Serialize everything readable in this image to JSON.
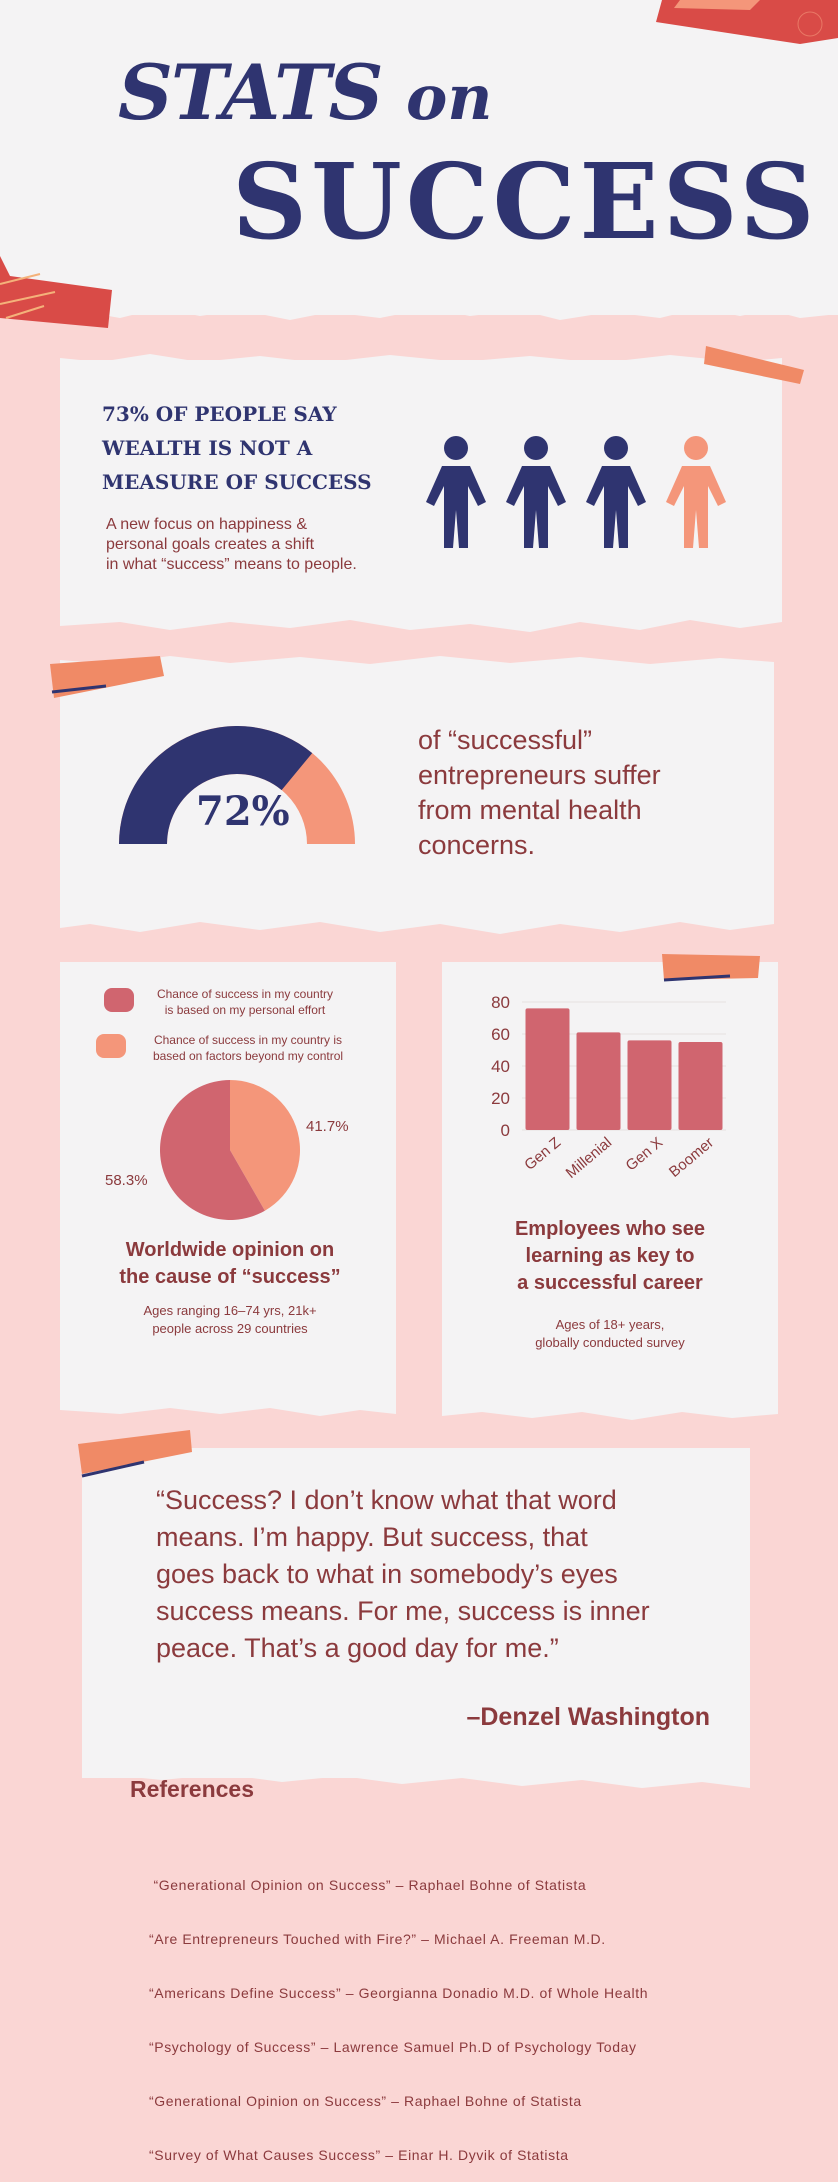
{
  "header": {
    "title_stats": "STATS",
    "title_on": "on",
    "title_success": "SUCCESS"
  },
  "wealth": {
    "heading_line1": "73% OF PEOPLE SAY",
    "heading_line2": "WEALTH IS NOT A",
    "heading_line3": "MEASURE OF  SUCCESS",
    "body_line1": "A new focus on happiness &",
    "body_line2": "personal goals creates a shift",
    "body_line3": "in what “success” means to people.",
    "people_highlighted": 1,
    "people_total": 4,
    "dark_color": "#2f3470",
    "highlight_color": "#f4967a"
  },
  "mental_health": {
    "percent_label": "72%",
    "percent_value": 72,
    "text_line1": "of “successful”",
    "text_line2": "entrepreneurs suffer",
    "text_line3": "from mental health",
    "text_line4": "concerns."
  },
  "opinion": {
    "legend": [
      {
        "line1": "Chance of success in my country",
        "line2": "is based on my personal effort",
        "color": "#d0656f"
      },
      {
        "line1": "Chance of success in my country is",
        "line2": "based on factors beyond my control",
        "color": "#f4967a"
      }
    ],
    "title_line1": "Worldwide opinion on",
    "title_line2": "the cause of “success”",
    "sub_line1": "Ages ranging 16–74 yrs, 21k+",
    "sub_line2": "people across 29 countries"
  },
  "learning": {
    "title_line1": "Employees who see",
    "title_line2": "learning as key to",
    "title_line3": "a successful career",
    "sub_line1": "Ages of 18+ years,",
    "sub_line2": "globally conducted survey"
  },
  "chart_data": [
    {
      "type": "pie",
      "labels": [
        "Chance of success in my country is based on my personal effort",
        "Chance of success in my country is based on factors beyond my control"
      ],
      "values": [
        58.3,
        41.7
      ],
      "value_labels": [
        "58.3%",
        "41.7%"
      ],
      "colors": [
        "#d0656f",
        "#f4967a"
      ],
      "title": "Worldwide opinion on the cause of “success”"
    },
    {
      "type": "bar",
      "categories": [
        "Gen Z",
        "Millenial",
        "Gen X",
        "Boomer"
      ],
      "values": [
        76,
        61,
        56,
        55
      ],
      "ylim": [
        0,
        80
      ],
      "yticks": [
        "0",
        "20",
        "40",
        "60",
        "80"
      ],
      "color": "#d0656f",
      "grid": true,
      "title": "Employees who see learning as key to a successful career"
    }
  ],
  "quote": {
    "line1": "“Success? I don’t know what that word",
    "line2": "means. I’m happy. But success, that",
    "line3": "goes back to what in somebody’s eyes",
    "line4": "success means. For me, success is inner",
    "line5": "peace. That’s a good day for me.”",
    "author": "–Denzel Washington"
  },
  "references": {
    "heading": "References",
    "items": [
      " “Generational Opinion on Success” – Raphael Bohne of Statista",
      "“Are Entrepreneurs Touched with Fire?” – Michael A. Freeman M.D.",
      "“Americans Define Success” – Georgianna Donadio M.D. of Whole Health",
      "“Psychology of Success” – Lawrence Samuel Ph.D of Psychology Today",
      "“Generational Opinion on Success” – Raphael Bohne of Statista",
      "“Survey of What Causes Success” – Einar H. Dyvik of Statista"
    ]
  }
}
